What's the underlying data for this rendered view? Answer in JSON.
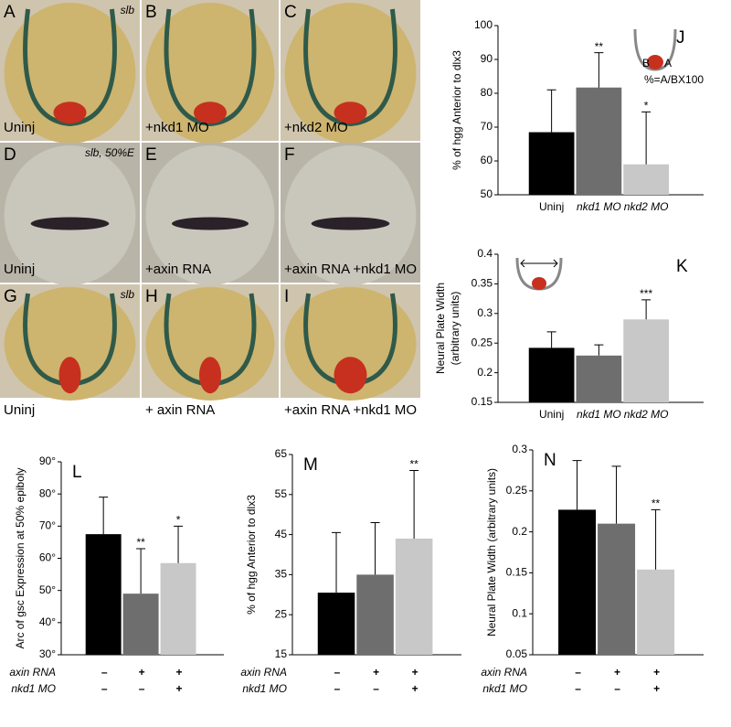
{
  "panels": [
    {
      "letter": "A",
      "caption": "Uninj",
      "tag": "slb"
    },
    {
      "letter": "B",
      "caption": "+nkd1 MO"
    },
    {
      "letter": "C",
      "caption": "+nkd2 MO"
    },
    {
      "letter": "D",
      "caption": "Uninj",
      "tag": "slb, 50%E"
    },
    {
      "letter": "E",
      "caption": "+axin RNA"
    },
    {
      "letter": "F",
      "caption": "+axin RNA +nkd1 MO"
    },
    {
      "letter": "G",
      "caption": "Uninj",
      "tag": "slb"
    },
    {
      "letter": "H",
      "caption": "+ axin RNA"
    },
    {
      "letter": "I",
      "caption": "+axin RNA +nkd1 MO"
    }
  ],
  "chart_data": [
    {
      "type": "bar",
      "panel": "J",
      "ylabel": [
        "% of hgg Anterior to dlx3"
      ],
      "categories": [
        "Uninj",
        "nkd1 MO",
        "nkd2 MO"
      ],
      "values": [
        68.5,
        81.7,
        59
      ],
      "errors": [
        12.5,
        10.3,
        15.5
      ],
      "stars": [
        null,
        "**",
        "*"
      ],
      "colors": [
        "#000000",
        "#6e6e6e",
        "#c8c8c8"
      ],
      "ylim": [
        50,
        100
      ],
      "yticks": [
        50,
        60,
        70,
        80,
        90,
        100
      ],
      "inset": [
        "B",
        "A",
        "%=A/BX100"
      ]
    },
    {
      "type": "bar",
      "panel": "K",
      "ylabel": [
        "Neural Plate Width",
        "(arbitrary units)"
      ],
      "categories": [
        "Uninj",
        "nkd1 MO",
        "nkd2 MO"
      ],
      "values": [
        0.242,
        0.229,
        0.29
      ],
      "errors": [
        0.027,
        0.018,
        0.033
      ],
      "stars": [
        null,
        null,
        "***"
      ],
      "colors": [
        "#000000",
        "#6e6e6e",
        "#c8c8c8"
      ],
      "ylim": [
        0.15,
        0.4
      ],
      "yticks": [
        0.15,
        0.2,
        0.25,
        0.3,
        0.35,
        0.4
      ]
    },
    {
      "type": "bar",
      "panel": "L",
      "ylabel": [
        "Arc of gsc Expression at 50% epiboly"
      ],
      "values": [
        67.5,
        49,
        58.5
      ],
      "errors": [
        11.5,
        14,
        11.5
      ],
      "stars": [
        null,
        "**",
        "*"
      ],
      "colors": [
        "#000000",
        "#6e6e6e",
        "#c8c8c8"
      ],
      "ylim": [
        30,
        90
      ],
      "yticks": [
        {
          "value": 30,
          "label": "30°"
        },
        {
          "value": 40,
          "label": "40°"
        },
        {
          "value": 50,
          "label": "50°"
        },
        {
          "value": 60,
          "label": "60°"
        },
        {
          "value": 70,
          "label": "70°"
        },
        {
          "value": 80,
          "label": "80°"
        },
        {
          "value": 90,
          "label": "90°"
        }
      ],
      "conditions": [
        {
          "name": "axin RNA",
          "marks": [
            "–",
            "+",
            "+"
          ]
        },
        {
          "name": "nkd1 MO",
          "marks": [
            "–",
            "–",
            "+"
          ]
        }
      ]
    },
    {
      "type": "bar",
      "panel": "M",
      "ylabel": [
        "% of hgg Anterior to dlx3"
      ],
      "values": [
        30.5,
        35,
        44
      ],
      "errors": [
        15,
        13,
        17
      ],
      "stars": [
        null,
        null,
        "**"
      ],
      "colors": [
        "#000000",
        "#6e6e6e",
        "#c8c8c8"
      ],
      "ylim": [
        15,
        65
      ],
      "yticks": [
        15,
        25,
        35,
        45,
        55,
        65
      ],
      "conditions": [
        {
          "name": "axin RNA",
          "marks": [
            "–",
            "+",
            "+"
          ]
        },
        {
          "name": "nkd1 MO",
          "marks": [
            "–",
            "–",
            "+"
          ]
        }
      ]
    },
    {
      "type": "bar",
      "panel": "N",
      "ylabel": [
        "Neural Plate Width (arbitrary units)"
      ],
      "values": [
        0.227,
        0.21,
        0.154
      ],
      "errors": [
        0.06,
        0.07,
        0.073
      ],
      "stars": [
        null,
        null,
        "**"
      ],
      "colors": [
        "#000000",
        "#6e6e6e",
        "#c8c8c8"
      ],
      "ylim": [
        0.05,
        0.3
      ],
      "yticks": [
        0.05,
        0.1,
        0.15,
        0.2,
        0.25,
        0.3
      ],
      "conditions": [
        {
          "name": "axin RNA",
          "marks": [
            "–",
            "+",
            "+"
          ]
        },
        {
          "name": "nkd1 MO",
          "marks": [
            "–",
            "–",
            "+"
          ]
        }
      ]
    }
  ]
}
